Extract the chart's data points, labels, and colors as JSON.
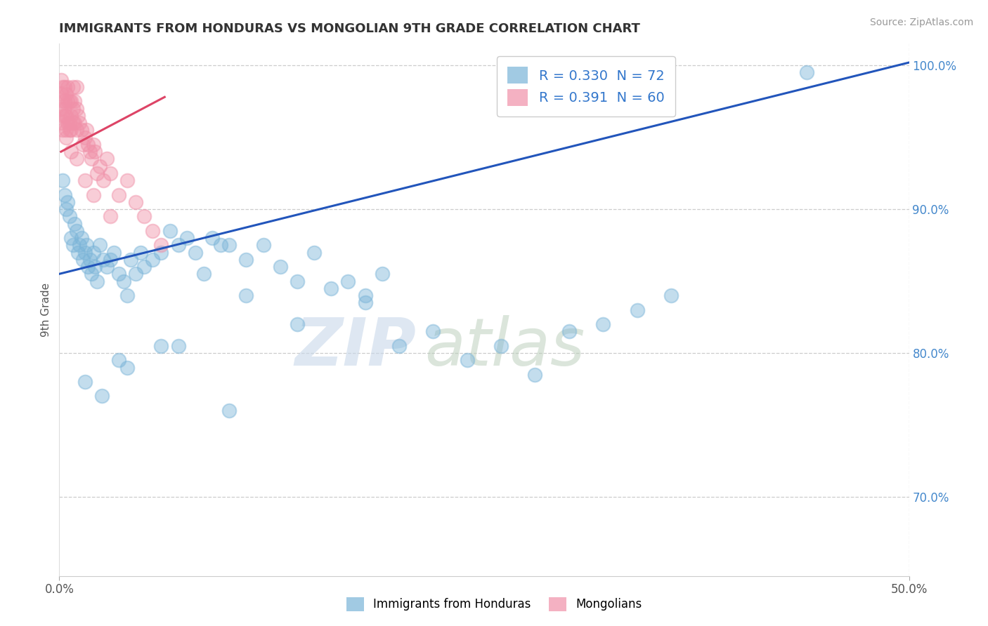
{
  "title": "IMMIGRANTS FROM HONDURAS VS MONGOLIAN 9TH GRADE CORRELATION CHART",
  "source": "Source: ZipAtlas.com",
  "ylabel": "9th Grade",
  "xlim": [
    0.0,
    0.5
  ],
  "ylim": [
    0.645,
    1.015
  ],
  "x_ticks": [
    0.0,
    0.5
  ],
  "x_tick_labels": [
    "0.0%",
    "50.0%"
  ],
  "y_tick_labels_right": [
    "70.0%",
    "80.0%",
    "90.0%",
    "100.0%"
  ],
  "y_ticks_right": [
    0.7,
    0.8,
    0.9,
    1.0
  ],
  "legend_entries": [
    {
      "label": "R = 0.330  N = 72",
      "color": "#aac4e0"
    },
    {
      "label": "R = 0.391  N = 60",
      "color": "#f4b8c8"
    }
  ],
  "bottom_legend": [
    {
      "label": "Immigrants from Honduras",
      "color": "#aac4e0"
    },
    {
      "label": "Mongolians",
      "color": "#f4b8c8"
    }
  ],
  "blue_scatter_x": [
    0.002,
    0.003,
    0.004,
    0.005,
    0.006,
    0.007,
    0.008,
    0.009,
    0.01,
    0.011,
    0.012,
    0.013,
    0.014,
    0.015,
    0.016,
    0.017,
    0.018,
    0.019,
    0.02,
    0.021,
    0.022,
    0.024,
    0.026,
    0.028,
    0.03,
    0.032,
    0.035,
    0.038,
    0.04,
    0.042,
    0.045,
    0.048,
    0.05,
    0.055,
    0.06,
    0.065,
    0.07,
    0.075,
    0.08,
    0.085,
    0.09,
    0.095,
    0.1,
    0.11,
    0.12,
    0.13,
    0.14,
    0.15,
    0.16,
    0.17,
    0.18,
    0.2,
    0.22,
    0.24,
    0.26,
    0.28,
    0.3,
    0.32,
    0.34,
    0.36,
    0.015,
    0.025,
    0.035,
    0.06,
    0.1,
    0.14,
    0.18,
    0.04,
    0.07,
    0.11,
    0.19,
    0.44
  ],
  "blue_scatter_y": [
    0.92,
    0.91,
    0.9,
    0.905,
    0.895,
    0.88,
    0.875,
    0.89,
    0.885,
    0.87,
    0.875,
    0.88,
    0.865,
    0.87,
    0.875,
    0.86,
    0.865,
    0.855,
    0.87,
    0.86,
    0.85,
    0.875,
    0.865,
    0.86,
    0.865,
    0.87,
    0.855,
    0.85,
    0.84,
    0.865,
    0.855,
    0.87,
    0.86,
    0.865,
    0.87,
    0.885,
    0.875,
    0.88,
    0.87,
    0.855,
    0.88,
    0.875,
    0.875,
    0.865,
    0.875,
    0.86,
    0.85,
    0.87,
    0.845,
    0.85,
    0.835,
    0.805,
    0.815,
    0.795,
    0.805,
    0.785,
    0.815,
    0.82,
    0.83,
    0.84,
    0.78,
    0.77,
    0.795,
    0.805,
    0.76,
    0.82,
    0.84,
    0.79,
    0.805,
    0.84,
    0.855,
    0.995
  ],
  "pink_scatter_x": [
    0.001,
    0.001,
    0.001,
    0.001,
    0.002,
    0.002,
    0.002,
    0.002,
    0.003,
    0.003,
    0.003,
    0.003,
    0.004,
    0.004,
    0.004,
    0.005,
    0.005,
    0.005,
    0.006,
    0.006,
    0.006,
    0.007,
    0.007,
    0.007,
    0.008,
    0.008,
    0.008,
    0.009,
    0.009,
    0.01,
    0.01,
    0.01,
    0.011,
    0.012,
    0.013,
    0.014,
    0.015,
    0.016,
    0.017,
    0.018,
    0.019,
    0.02,
    0.021,
    0.022,
    0.024,
    0.026,
    0.028,
    0.03,
    0.035,
    0.04,
    0.045,
    0.05,
    0.055,
    0.06,
    0.004,
    0.007,
    0.01,
    0.015,
    0.02,
    0.03
  ],
  "pink_scatter_y": [
    0.98,
    0.97,
    0.96,
    0.99,
    0.975,
    0.965,
    0.985,
    0.955,
    0.975,
    0.965,
    0.985,
    0.97,
    0.965,
    0.98,
    0.955,
    0.975,
    0.96,
    0.985,
    0.975,
    0.96,
    0.955,
    0.965,
    0.955,
    0.975,
    0.97,
    0.96,
    0.985,
    0.975,
    0.96,
    0.97,
    0.955,
    0.985,
    0.965,
    0.96,
    0.955,
    0.945,
    0.95,
    0.955,
    0.945,
    0.94,
    0.935,
    0.945,
    0.94,
    0.925,
    0.93,
    0.92,
    0.935,
    0.925,
    0.91,
    0.92,
    0.905,
    0.895,
    0.885,
    0.875,
    0.95,
    0.94,
    0.935,
    0.92,
    0.91,
    0.895
  ],
  "blue_line_x": [
    0.0,
    0.5
  ],
  "blue_line_y": [
    0.855,
    1.002
  ],
  "pink_line_x": [
    0.001,
    0.062
  ],
  "pink_line_y": [
    0.94,
    0.978
  ],
  "scatter_size": 200,
  "scatter_alpha": 0.45,
  "blue_color": "#7ab4d8",
  "pink_color": "#f090a8",
  "line_blue_color": "#2255bb",
  "line_pink_color": "#dd4466",
  "grid_color": "#cccccc",
  "background_color": "#ffffff",
  "title_color": "#333333",
  "right_axis_color": "#4488cc",
  "legend_text_color": "#3377cc"
}
